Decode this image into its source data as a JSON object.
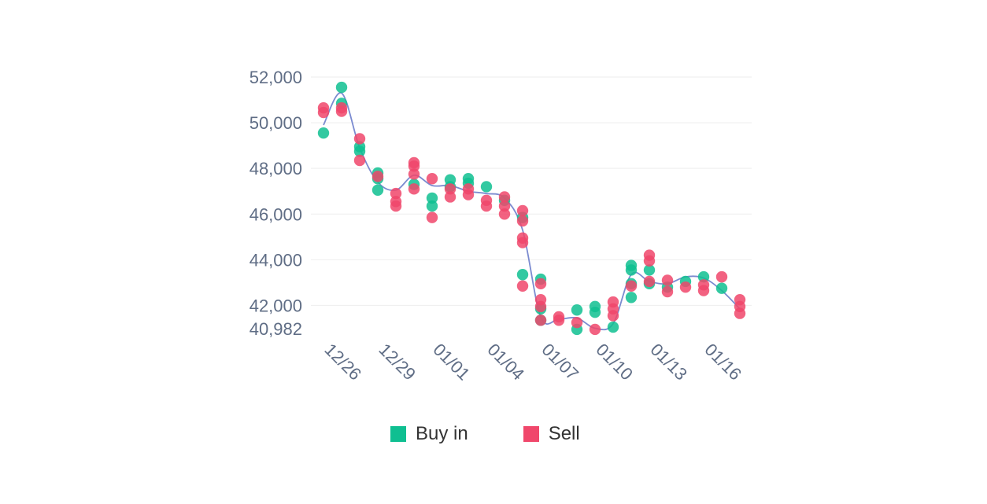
{
  "chart_data": {
    "type": "scatter",
    "title": "",
    "xlabel": "",
    "ylabel": "",
    "ylim": [
      40982,
      52000
    ],
    "yticks": [
      "52,000",
      "50,000",
      "48,000",
      "46,000",
      "44,000",
      "42,000",
      "40,982"
    ],
    "ytick_values": [
      52000,
      50000,
      48000,
      46000,
      44000,
      42000,
      40982
    ],
    "x_tick_labels": [
      "12/26",
      "12/29",
      "01/01",
      "01/04",
      "01/07",
      "01/10",
      "01/13",
      "01/16"
    ],
    "x_tick_index": [
      0,
      3,
      6,
      9,
      12,
      15,
      18,
      21
    ],
    "x_count": 24,
    "grid": true,
    "legend": "bottom",
    "series": [
      {
        "name": "Buy in",
        "color": "#0fbf91",
        "points": [
          [
            0,
            49550
          ],
          [
            1,
            51550
          ],
          [
            1,
            50850
          ],
          [
            2,
            48950
          ],
          [
            2,
            48750
          ],
          [
            3,
            47800
          ],
          [
            3,
            47550
          ],
          [
            3,
            47050
          ],
          [
            5,
            47300
          ],
          [
            6,
            46700
          ],
          [
            6,
            46350
          ],
          [
            7,
            47500
          ],
          [
            7,
            47200
          ],
          [
            8,
            47550
          ],
          [
            8,
            47350
          ],
          [
            9,
            47200
          ],
          [
            10,
            46600
          ],
          [
            11,
            45850
          ],
          [
            11,
            43350
          ],
          [
            12,
            43150
          ],
          [
            12,
            41850
          ],
          [
            12,
            41350
          ],
          [
            14,
            41800
          ],
          [
            14,
            40950
          ],
          [
            15,
            41950
          ],
          [
            15,
            41700
          ],
          [
            16,
            41050
          ],
          [
            17,
            43750
          ],
          [
            17,
            43550
          ],
          [
            17,
            42950
          ],
          [
            17,
            42350
          ],
          [
            18,
            43550
          ],
          [
            18,
            42950
          ],
          [
            19,
            42800
          ],
          [
            20,
            43050
          ],
          [
            21,
            43250
          ],
          [
            22,
            42750
          ]
        ]
      },
      {
        "name": "Sell",
        "color": "#f0476b",
        "points": [
          [
            0,
            50650
          ],
          [
            0,
            50450
          ],
          [
            1,
            50650
          ],
          [
            1,
            50500
          ],
          [
            2,
            49300
          ],
          [
            2,
            48350
          ],
          [
            3,
            47650
          ],
          [
            4,
            46900
          ],
          [
            4,
            46550
          ],
          [
            4,
            46350
          ],
          [
            5,
            48250
          ],
          [
            5,
            48100
          ],
          [
            5,
            47750
          ],
          [
            5,
            47100
          ],
          [
            6,
            47550
          ],
          [
            6,
            45850
          ],
          [
            7,
            47100
          ],
          [
            7,
            46750
          ],
          [
            8,
            47100
          ],
          [
            8,
            46850
          ],
          [
            9,
            46600
          ],
          [
            9,
            46350
          ],
          [
            10,
            46750
          ],
          [
            10,
            46350
          ],
          [
            10,
            46000
          ],
          [
            11,
            46150
          ],
          [
            11,
            45700
          ],
          [
            11,
            44950
          ],
          [
            11,
            44750
          ],
          [
            11,
            42850
          ],
          [
            12,
            42950
          ],
          [
            12,
            42250
          ],
          [
            12,
            41950
          ],
          [
            12,
            41350
          ],
          [
            13,
            41500
          ],
          [
            13,
            41350
          ],
          [
            14,
            41250
          ],
          [
            15,
            40950
          ],
          [
            16,
            42150
          ],
          [
            16,
            41850
          ],
          [
            16,
            41550
          ],
          [
            17,
            42850
          ],
          [
            18,
            44200
          ],
          [
            18,
            43950
          ],
          [
            18,
            43050
          ],
          [
            19,
            43100
          ],
          [
            19,
            42600
          ],
          [
            20,
            42800
          ],
          [
            21,
            42900
          ],
          [
            21,
            42650
          ],
          [
            22,
            43250
          ],
          [
            23,
            42250
          ],
          [
            23,
            41950
          ],
          [
            23,
            41650
          ]
        ]
      }
    ],
    "trend_line": [
      [
        0,
        49900
      ],
      [
        1,
        51300
      ],
      [
        2,
        48900
      ],
      [
        3,
        47400
      ],
      [
        4,
        47050
      ],
      [
        5,
        47700
      ],
      [
        6,
        47250
      ],
      [
        7,
        47250
      ],
      [
        8,
        47000
      ],
      [
        9,
        46900
      ],
      [
        10,
        46700
      ],
      [
        11,
        45300
      ],
      [
        12,
        41500
      ],
      [
        13,
        41400
      ],
      [
        14,
        41450
      ],
      [
        15,
        41000
      ],
      [
        16,
        41200
      ],
      [
        17,
        43350
      ],
      [
        18,
        43050
      ],
      [
        19,
        42950
      ],
      [
        20,
        43250
      ],
      [
        21,
        43200
      ],
      [
        22,
        42650
      ],
      [
        23,
        41850
      ]
    ]
  }
}
